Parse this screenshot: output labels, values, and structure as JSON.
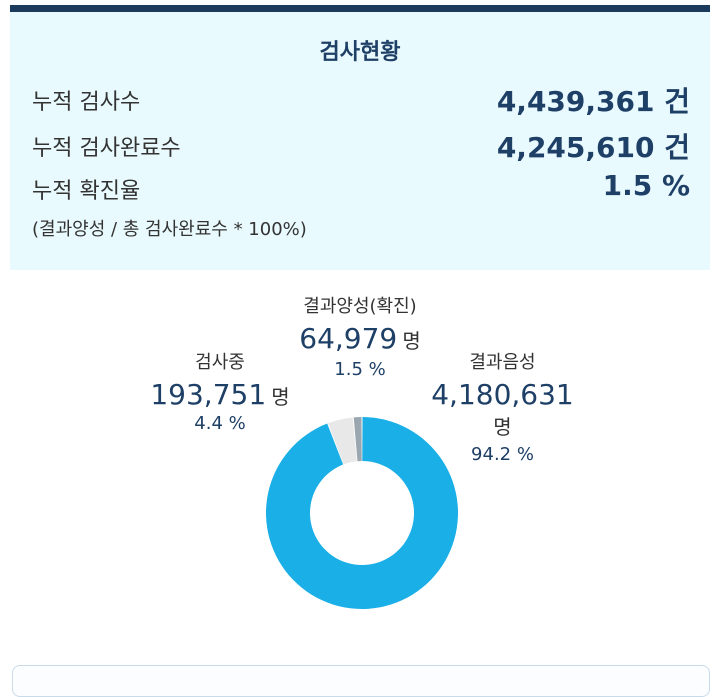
{
  "panel": {
    "title": "검사현황",
    "rows": [
      {
        "label": "누적 검사수",
        "value": "4,439,361 건"
      },
      {
        "label": "누적 검사완료수",
        "value": "4,245,610 건"
      },
      {
        "label": "누적 확진율",
        "value": "1.5 %"
      }
    ],
    "formula": "(결과양성 / 총 검사완료수 * 100%)"
  },
  "chart_data": {
    "type": "pie",
    "title": "",
    "segments": [
      {
        "name": "결과음성",
        "value": 4180631,
        "unit": "명",
        "percent": 94.2,
        "percent_text": "94.2 %",
        "value_text": "4,180,631",
        "color": "#1aafe6"
      },
      {
        "name": "검사중",
        "value": 193751,
        "unit": "명",
        "percent": 4.4,
        "percent_text": "4.4 %",
        "value_text": "193,751",
        "color": "#e8e8e8"
      },
      {
        "name": "결과양성(확진)",
        "value": 64979,
        "unit": "명",
        "percent": 1.5,
        "percent_text": "1.5 %",
        "value_text": "64,979",
        "color": "#9aa7b1"
      }
    ]
  }
}
